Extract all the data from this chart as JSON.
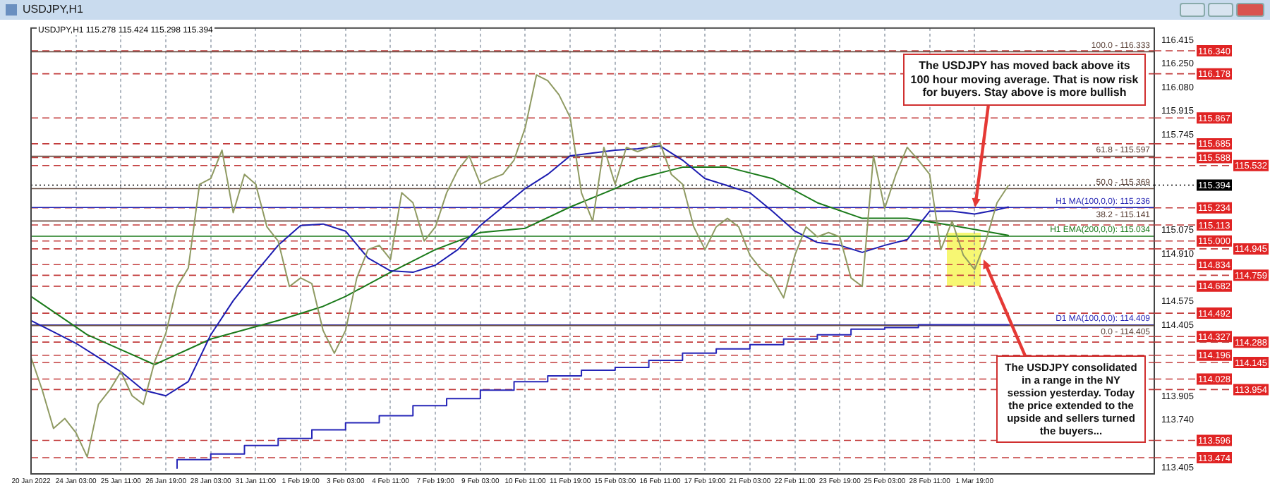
{
  "chart_data": {
    "type": "line",
    "title": "USDJPY,H1",
    "subtitle": "USDJPY,H1  115.278 115.424 115.298 115.394",
    "categories": [
      "20 Jan 2022",
      null,
      null,
      null,
      "24 Jan 03:00",
      null,
      null,
      null,
      "25 Jan 11:00",
      null,
      null,
      null,
      "26 Jan 19:00",
      null,
      null,
      null,
      "28 Jan 03:00",
      null,
      null,
      null,
      "31 Jan 11:00",
      null,
      null,
      null,
      "1 Feb 19:00",
      null,
      null,
      null,
      "3 Feb 03:00",
      null,
      null,
      null,
      "4 Feb 11:00",
      null,
      null,
      null,
      "7 Feb 19:00",
      null,
      null,
      null,
      "9 Feb 03:00",
      null,
      null,
      null,
      "10 Feb 11:00",
      null,
      null,
      null,
      "11 Feb 19:00",
      null,
      null,
      null,
      "15 Feb 03:00",
      null,
      null,
      null,
      "16 Feb 11:00",
      null,
      null,
      null,
      "17 Feb 19:00",
      null,
      null,
      null,
      "21 Feb 03:00",
      null,
      null,
      null,
      "22 Feb 11:00",
      null,
      null,
      null,
      "23 Feb 19:00",
      null,
      null,
      null,
      "25 Feb 03:00",
      null,
      null,
      null,
      "28 Feb 11:00",
      null,
      null,
      null,
      "1 Mar 19:00",
      null,
      null,
      null,
      null,
      null,
      null,
      null,
      null,
      null,
      null,
      null,
      null,
      null,
      null,
      null,
      null
    ],
    "series": [
      {
        "type": "line",
        "color": "#8f9a62",
        "values": [
          114.18,
          113.95,
          113.68,
          113.75,
          113.65,
          113.48,
          113.85,
          113.95,
          114.08,
          113.91,
          113.85,
          114.15,
          114.35,
          114.68,
          114.81,
          115.4,
          115.44,
          115.64,
          115.2,
          115.47,
          115.4,
          115.1,
          115.0,
          114.68,
          114.74,
          114.7,
          114.37,
          114.21,
          114.37,
          114.74,
          114.94,
          114.97,
          114.87,
          115.34,
          115.27,
          115.0,
          115.1,
          115.34,
          115.5,
          115.6,
          115.4,
          115.44,
          115.47,
          115.57,
          115.8,
          116.17,
          116.13,
          116.03,
          115.87,
          115.34,
          115.14,
          115.66,
          115.4,
          115.66,
          115.63,
          115.66,
          115.69,
          115.47,
          115.4,
          115.1,
          114.94,
          115.1,
          115.16,
          115.1,
          114.9,
          114.8,
          114.74,
          114.6,
          114.9,
          115.1,
          115.03,
          115.06,
          115.03,
          114.74,
          114.68,
          115.6,
          115.23,
          115.47,
          115.66,
          115.57,
          115.47,
          114.94,
          115.14,
          114.9,
          114.8,
          115.0,
          115.27,
          115.39,
          null,
          null,
          null,
          null,
          null,
          null,
          null,
          null,
          null,
          null,
          null,
          null,
          null
        ]
      },
      {
        "type": "line",
        "color": "#1c1cb0",
        "values": [
          114.44,
          null,
          114.36,
          null,
          114.28,
          null,
          114.18,
          null,
          114.08,
          null,
          113.95,
          null,
          113.91,
          null,
          114.01,
          null,
          114.34,
          null,
          114.58,
          null,
          114.78,
          null,
          114.97,
          null,
          115.11,
          null,
          115.12,
          null,
          115.07,
          null,
          114.88,
          null,
          114.79,
          null,
          114.78,
          null,
          114.83,
          null,
          114.94,
          null,
          115.11,
          null,
          115.24,
          null,
          115.37,
          null,
          115.47,
          null,
          115.6,
          null,
          115.62,
          null,
          115.64,
          null,
          115.65,
          null,
          115.67,
          null,
          115.57,
          null,
          115.44,
          null,
          115.39,
          null,
          115.34,
          null,
          115.21,
          null,
          115.07,
          null,
          114.99,
          null,
          114.97,
          null,
          114.92,
          null,
          114.97,
          null,
          115.01,
          null,
          115.21,
          null,
          115.21,
          null,
          115.19,
          null,
          115.22,
          115.24,
          null,
          null,
          null,
          null,
          null,
          null,
          null,
          null,
          null,
          null,
          null,
          null,
          null
        ]
      },
      {
        "type": "line",
        "color": "#1a7a1a",
        "values": [
          114.61,
          null,
          null,
          null,
          null,
          114.34,
          null,
          null,
          null,
          null,
          null,
          114.13,
          null,
          null,
          null,
          null,
          114.31,
          null,
          null,
          null,
          null,
          null,
          114.44,
          null,
          null,
          null,
          114.54,
          null,
          114.61,
          null,
          null,
          null,
          114.78,
          null,
          null,
          null,
          114.94,
          null,
          null,
          null,
          115.06,
          null,
          null,
          null,
          115.09,
          null,
          null,
          null,
          115.24,
          null,
          null,
          null,
          115.37,
          null,
          115.44,
          null,
          null,
          null,
          115.52,
          null,
          null,
          null,
          115.52,
          null,
          null,
          null,
          115.44,
          null,
          null,
          null,
          115.27,
          null,
          null,
          null,
          115.16,
          null,
          null,
          null,
          115.16,
          null,
          null,
          null,
          115.11,
          null,
          null,
          null,
          null,
          115.04,
          null,
          null,
          null,
          null,
          null,
          null,
          null,
          null,
          null,
          null,
          null,
          null,
          null
        ]
      },
      {
        "type": "step",
        "color": "#2626b8",
        "values": [
          null,
          null,
          null,
          null,
          null,
          null,
          null,
          null,
          null,
          null,
          null,
          null,
          null,
          113.4,
          null,
          null,
          113.46,
          null,
          null,
          113.5,
          null,
          null,
          113.56,
          null,
          null,
          113.61,
          null,
          null,
          113.67,
          null,
          null,
          113.72,
          null,
          null,
          113.77,
          null,
          null,
          113.84,
          null,
          null,
          113.89,
          null,
          null,
          113.95,
          null,
          null,
          114.01,
          null,
          null,
          114.05,
          null,
          null,
          114.09,
          null,
          null,
          114.11,
          null,
          null,
          114.16,
          null,
          null,
          114.21,
          null,
          null,
          114.24,
          null,
          null,
          114.27,
          null,
          null,
          114.31,
          null,
          null,
          114.34,
          null,
          null,
          114.38,
          null,
          null,
          114.39,
          null,
          null,
          114.41,
          null,
          null,
          114.41,
          null,
          114.41,
          null,
          null,
          null,
          null,
          null,
          null,
          null,
          null,
          null,
          null,
          null,
          null,
          null
        ]
      }
    ],
    "ylim": [
      113.36,
      116.5
    ],
    "yticks": [
      116.415,
      {
        "value": 116.25,
        "label": "116.250"
      },
      {
        "value": 116.08,
        "label": "116.080"
      },
      115.915,
      115.745,
      115.075,
      {
        "value": 114.91,
        "label": "114.910"
      },
      114.575,
      114.405,
      113.905,
      {
        "value": 113.74,
        "label": "113.740"
      },
      113.405
    ],
    "grid": "x",
    "legend": false,
    "ref_lines": [
      {
        "axis": "y",
        "value": 116.34,
        "label": "116.340",
        "color": "#c23b3b",
        "line_style": "dashed"
      },
      {
        "axis": "y",
        "value": 116.178,
        "label": "116.178",
        "color": "#c23b3b",
        "line_style": "dashed"
      },
      {
        "axis": "y",
        "value": 115.867,
        "label": "115.867",
        "color": "#c23b3b",
        "line_style": "dashed"
      },
      {
        "axis": "y",
        "value": 115.685,
        "label": "115.685",
        "color": "#c23b3b",
        "line_style": "dashed"
      },
      {
        "axis": "y",
        "value": 115.588,
        "label": "115.588",
        "color": "#c23b3b",
        "line_style": "dashed"
      },
      {
        "axis": "y",
        "value": 115.532,
        "label": "115.532",
        "color": "#c23b3b",
        "line_style": "dashed"
      },
      {
        "axis": "y",
        "value": 115.234,
        "label": "115.234",
        "color": "#c23b3b",
        "line_style": "dashed"
      },
      {
        "axis": "y",
        "value": 115.113,
        "label": "115.113",
        "color": "#c23b3b",
        "line_style": "dashed"
      },
      {
        "axis": "y",
        "value": 115.0,
        "label": "115.000",
        "color": "#c23b3b",
        "line_style": "dashed"
      },
      {
        "axis": "y",
        "value": 114.945,
        "label": "114.945",
        "color": "#c23b3b",
        "line_style": "dashed"
      },
      {
        "axis": "y",
        "value": 114.834,
        "label": "114.834",
        "color": "#c23b3b",
        "line_style": "dashed"
      },
      {
        "axis": "y",
        "value": 114.759,
        "label": "114.759",
        "color": "#c23b3b",
        "line_style": "dashed"
      },
      {
        "axis": "y",
        "value": 114.682,
        "label": "114.682",
        "color": "#c23b3b",
        "line_style": "dashed"
      },
      {
        "axis": "y",
        "value": 114.492,
        "label": "114.492",
        "color": "#c23b3b",
        "line_style": "dashed"
      },
      {
        "axis": "y",
        "value": 114.327,
        "label": "114.327",
        "color": "#c23b3b",
        "line_style": "dashed"
      },
      {
        "axis": "y",
        "value": 114.288,
        "label": "114.288",
        "color": "#c23b3b",
        "line_style": "dashed"
      },
      {
        "axis": "y",
        "value": 114.196,
        "label": "114.196",
        "color": "#c23b3b",
        "line_style": "dashed"
      },
      {
        "axis": "y",
        "value": 114.145,
        "label": "114.145",
        "color": "#c23b3b",
        "line_style": "dashed"
      },
      {
        "axis": "y",
        "value": 114.028,
        "label": "114.028",
        "color": "#c23b3b",
        "line_style": "dashed"
      },
      {
        "axis": "y",
        "value": 113.954,
        "label": "113.954",
        "color": "#c23b3b",
        "line_style": "dashed"
      },
      {
        "axis": "y",
        "value": 113.596,
        "label": "113.596",
        "color": "#c23b3b",
        "line_style": "dashed"
      },
      {
        "axis": "y",
        "value": 113.474,
        "label": "113.474",
        "color": "#c23b3b",
        "line_style": "dashed"
      },
      {
        "axis": "y",
        "value": 115.394,
        "label": "115.394",
        "color": "#000000",
        "line_style": "dotted"
      },
      {
        "axis": "y",
        "value": 116.333,
        "color": "#6b4f45",
        "line_style": "solid"
      },
      {
        "axis": "y",
        "value": 115.597,
        "color": "#6b4f45",
        "line_style": "solid"
      },
      {
        "axis": "y",
        "value": 115.369,
        "color": "#6b4f45",
        "line_style": "solid"
      },
      {
        "axis": "y",
        "value": 115.236,
        "label": "H1 MA(100,0,0): 115.236",
        "color": "#1c1cb0",
        "line_style": "solid"
      },
      {
        "axis": "y",
        "value": 115.141,
        "color": "#6b4f45",
        "line_style": "solid"
      },
      {
        "axis": "y",
        "value": 115.034,
        "label": "H1 EMA(200,0,0): 115.034",
        "color": "#1a7a1a",
        "line_style": "solid"
      },
      {
        "axis": "y",
        "value": 114.409,
        "label": "D1 MA(100,0,0): 114.409",
        "color": "#2626b8",
        "line_style": "solid"
      },
      {
        "axis": "y",
        "value": 114.405,
        "color": "#6b4f45",
        "line_style": "solid"
      }
    ],
    "annotations": [
      {
        "text": "The USDJPY has moved back above its 100 hour moving average. That is now risk for buyers.  Stay above is more bullish",
        "x": "1 Mar 19:00",
        "y": 115.24
      },
      {
        "text": "The USDJPY consolidated in a range in the NY session yesterday. Today the price extended to the upside and sellers turned the buyers...",
        "x": "1 Mar 19:00",
        "y": 114.82
      },
      {
        "text": "100.0 - 116.333",
        "y": 116.333
      },
      {
        "text": "61.8 - 115.597",
        "y": 115.597
      },
      {
        "text": "50.0 - 115.369",
        "y": 115.369
      },
      {
        "text": "38.2 - 115.141",
        "y": 115.141
      },
      {
        "text": "0.0 - 114.405",
        "y": 114.405
      }
    ]
  }
}
